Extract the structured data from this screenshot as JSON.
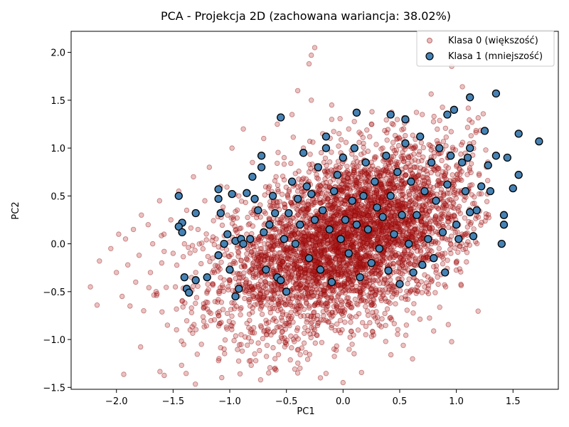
{
  "chart_data": {
    "type": "scatter",
    "title": "PCA - Projekcja 2D (zachowana wariancja: 38.02%)",
    "xlabel": "PC1",
    "ylabel": "PC2",
    "xlim": [
      -2.4,
      1.9
    ],
    "ylim": [
      -1.52,
      2.22
    ],
    "xticks": [
      -2.0,
      -1.5,
      -1.0,
      -0.5,
      0.0,
      0.5,
      1.0,
      1.5
    ],
    "xtick_labels": [
      "−2.0",
      "−1.5",
      "−1.0",
      "−0.5",
      "0.0",
      "0.5",
      "1.0",
      "1.5"
    ],
    "yticks": [
      -1.5,
      -1.0,
      -0.5,
      0.0,
      0.5,
      1.0,
      1.5,
      2.0
    ],
    "ytick_labels": [
      "−1.5",
      "−1.0",
      "−0.5",
      "0.0",
      "0.5",
      "1.0",
      "1.5",
      "2.0"
    ],
    "grid": false,
    "legend_position": "top-right",
    "series": [
      {
        "name": "Klasa 0 (większość)",
        "color": "#b22222",
        "edge": "#8b0000",
        "approx_count": 4500,
        "points": [
          [
            -2.23,
            -0.45
          ],
          [
            -2.15,
            -0.18
          ],
          [
            -2.05,
            -0.05
          ],
          [
            -2.0,
            -0.3
          ],
          [
            -1.98,
            0.1
          ],
          [
            -1.95,
            -0.55
          ],
          [
            -1.92,
            0.05
          ],
          [
            -1.9,
            -0.22
          ],
          [
            -1.88,
            -0.65
          ],
          [
            -1.85,
            0.15
          ],
          [
            -1.83,
            -0.4
          ],
          [
            -1.8,
            -0.12
          ],
          [
            -1.78,
            0.3
          ],
          [
            -1.76,
            -0.7
          ],
          [
            -1.72,
            0.2
          ],
          [
            -1.7,
            -0.3
          ],
          [
            -1.68,
            0.0
          ],
          [
            -1.65,
            -0.5
          ],
          [
            -1.62,
            0.45
          ],
          [
            -1.6,
            -0.2
          ],
          [
            -1.58,
            0.1
          ],
          [
            -1.55,
            -0.85
          ],
          [
            -1.52,
            0.25
          ],
          [
            -1.5,
            -0.1
          ],
          [
            -1.48,
            -0.45
          ],
          [
            -1.45,
            0.55
          ],
          [
            -1.42,
            -0.6
          ],
          [
            -1.4,
            0.0
          ],
          [
            -1.38,
            0.35
          ],
          [
            -1.35,
            -0.9
          ],
          [
            -1.32,
            0.7
          ],
          [
            -1.3,
            -0.3
          ],
          [
            -1.28,
            0.15
          ],
          [
            -1.25,
            -1.05
          ],
          [
            -1.22,
            0.45
          ],
          [
            -1.2,
            -0.5
          ],
          [
            -1.18,
            0.8
          ],
          [
            -1.15,
            -0.15
          ],
          [
            -1.12,
            0.05
          ],
          [
            -1.1,
            -0.75
          ],
          [
            -1.08,
            0.6
          ],
          [
            -1.05,
            -1.1
          ],
          [
            -1.02,
            0.3
          ],
          [
            -1.0,
            -0.4
          ],
          [
            -0.98,
            1.0
          ],
          [
            -0.95,
            -0.2
          ],
          [
            -0.92,
            0.5
          ],
          [
            -0.9,
            -0.95
          ],
          [
            -0.88,
            1.2
          ],
          [
            -0.85,
            0.1
          ],
          [
            -0.82,
            -0.65
          ],
          [
            -0.8,
            0.85
          ],
          [
            -0.78,
            -1.15
          ],
          [
            -0.75,
            0.35
          ],
          [
            -0.72,
            -0.3
          ],
          [
            -0.7,
            1.1
          ],
          [
            -0.68,
            -0.8
          ],
          [
            -0.65,
            0.6
          ],
          [
            -0.62,
            0.0
          ],
          [
            -0.6,
            -1.2
          ],
          [
            -0.58,
            1.25
          ],
          [
            -0.55,
            -0.45
          ],
          [
            -0.52,
            0.9
          ],
          [
            -0.5,
            -1.05
          ],
          [
            -0.48,
            0.2
          ],
          [
            -0.45,
            1.35
          ],
          [
            -0.42,
            -0.7
          ],
          [
            -0.4,
            0.55
          ],
          [
            -0.38,
            -1.3
          ],
          [
            -0.35,
            1.0
          ],
          [
            -0.32,
            -0.25
          ],
          [
            -0.3,
            0.75
          ],
          [
            -0.28,
            1.5
          ],
          [
            -0.25,
            -0.9
          ],
          [
            -0.22,
            0.3
          ],
          [
            -0.2,
            -1.4
          ],
          [
            -0.18,
            1.15
          ],
          [
            -0.15,
            -0.55
          ],
          [
            -0.12,
            0.6
          ],
          [
            -0.1,
            1.3
          ],
          [
            -0.08,
            -1.1
          ],
          [
            -0.05,
            0.1
          ],
          [
            -0.02,
            0.95
          ],
          [
            0.0,
            -0.75
          ],
          [
            0.02,
            0.45
          ],
          [
            0.05,
            1.2
          ],
          [
            0.08,
            -1.05
          ],
          [
            0.1,
            0.25
          ],
          [
            0.12,
            0.8
          ],
          [
            0.15,
            -0.5
          ],
          [
            0.18,
            1.05
          ],
          [
            0.2,
            -0.95
          ],
          [
            0.22,
            0.4
          ],
          [
            0.25,
            1.25
          ],
          [
            0.28,
            -0.3
          ],
          [
            0.3,
            0.65
          ],
          [
            0.32,
            -0.85
          ],
          [
            0.35,
            1.0
          ],
          [
            0.38,
            -0.6
          ],
          [
            0.4,
            0.3
          ],
          [
            0.42,
            0.85
          ],
          [
            0.45,
            -0.45
          ],
          [
            0.48,
            1.1
          ],
          [
            0.5,
            -0.2
          ],
          [
            0.52,
            0.55
          ],
          [
            0.55,
            -0.55
          ],
          [
            0.58,
            0.9
          ],
          [
            0.6,
            0.1
          ],
          [
            0.62,
            -0.35
          ],
          [
            0.65,
            0.7
          ],
          [
            0.68,
            -0.15
          ],
          [
            0.7,
            0.4
          ],
          [
            0.72,
            -0.45
          ],
          [
            0.75,
            0.85
          ],
          [
            0.78,
            0.0
          ],
          [
            0.8,
            0.5
          ],
          [
            0.82,
            -0.3
          ],
          [
            0.85,
            0.65
          ],
          [
            0.88,
            0.2
          ],
          [
            0.9,
            -0.1
          ],
          [
            0.92,
            0.45
          ],
          [
            0.95,
            0.0
          ],
          [
            0.98,
            0.3
          ],
          [
            1.0,
            -0.2
          ],
          [
            1.02,
            0.55
          ],
          [
            1.05,
            0.1
          ],
          [
            1.08,
            -0.05
          ],
          [
            1.12,
            0.35
          ],
          [
            -0.25,
            2.05
          ],
          [
            -0.28,
            1.97
          ],
          [
            -0.3,
            1.88
          ],
          [
            -0.4,
            1.6
          ],
          [
            -0.1,
            1.45
          ],
          [
            0.0,
            -1.45
          ],
          [
            -0.4,
            -1.35
          ],
          [
            -0.6,
            -1.3
          ]
        ]
      },
      {
        "name": "Klasa 1 (mniejszość)",
        "color": "#4682b4",
        "edge": "#000000",
        "points": [
          [
            -1.45,
            0.5
          ],
          [
            -1.42,
            0.22
          ],
          [
            -1.45,
            0.18
          ],
          [
            -1.42,
            0.12
          ],
          [
            -1.38,
            -0.47
          ],
          [
            -1.36,
            -0.51
          ],
          [
            -1.4,
            -0.35
          ],
          [
            -1.3,
            -0.38
          ],
          [
            -1.3,
            0.32
          ],
          [
            -1.2,
            -0.35
          ],
          [
            -1.1,
            -0.12
          ],
          [
            -1.05,
            0.0
          ],
          [
            -1.02,
            0.1
          ],
          [
            -1.0,
            -0.27
          ],
          [
            -0.95,
            -0.55
          ],
          [
            -0.98,
            0.52
          ],
          [
            -1.1,
            0.57
          ],
          [
            -1.1,
            0.47
          ],
          [
            -1.08,
            0.32
          ],
          [
            -0.95,
            0.03
          ],
          [
            -0.92,
            -0.47
          ],
          [
            -0.9,
            0.05
          ],
          [
            -0.88,
            0.0
          ],
          [
            -0.85,
            0.53
          ],
          [
            -0.82,
            0.05
          ],
          [
            -0.8,
            0.7
          ],
          [
            -0.78,
            0.47
          ],
          [
            -0.75,
            0.35
          ],
          [
            -0.72,
            0.8
          ],
          [
            -0.72,
            0.92
          ],
          [
            -0.7,
            0.12
          ],
          [
            -0.68,
            -0.27
          ],
          [
            -0.65,
            0.2
          ],
          [
            -0.62,
            0.5
          ],
          [
            -0.6,
            0.32
          ],
          [
            -0.58,
            -0.35
          ],
          [
            -0.55,
            -0.38
          ],
          [
            -0.52,
            0.05
          ],
          [
            -0.5,
            -0.5
          ],
          [
            -0.48,
            0.32
          ],
          [
            -0.45,
            0.65
          ],
          [
            -0.42,
            0.0
          ],
          [
            -0.4,
            0.47
          ],
          [
            -0.38,
            0.2
          ],
          [
            -0.35,
            0.95
          ],
          [
            -0.32,
            0.6
          ],
          [
            -0.3,
            -0.15
          ],
          [
            -0.28,
            0.52
          ],
          [
            -0.25,
            0.25
          ],
          [
            -0.22,
            0.8
          ],
          [
            -0.2,
            -0.27
          ],
          [
            -0.18,
            0.35
          ],
          [
            -0.15,
            1.0
          ],
          [
            -0.12,
            0.15
          ],
          [
            -0.1,
            -0.4
          ],
          [
            -0.08,
            0.55
          ],
          [
            -0.05,
            0.72
          ],
          [
            -0.02,
            0.05
          ],
          [
            0.0,
            0.9
          ],
          [
            0.02,
            0.25
          ],
          [
            0.05,
            -0.1
          ],
          [
            0.08,
            0.45
          ],
          [
            0.1,
            1.0
          ],
          [
            0.12,
            0.2
          ],
          [
            0.15,
            -0.35
          ],
          [
            0.18,
            0.5
          ],
          [
            0.2,
            0.85
          ],
          [
            0.22,
            0.15
          ],
          [
            0.25,
            -0.2
          ],
          [
            0.28,
            0.65
          ],
          [
            0.3,
            0.38
          ],
          [
            0.32,
            -0.05
          ],
          [
            0.35,
            0.28
          ],
          [
            0.38,
            0.92
          ],
          [
            0.4,
            -0.28
          ],
          [
            0.42,
            0.5
          ],
          [
            0.45,
            0.1
          ],
          [
            0.48,
            0.75
          ],
          [
            0.5,
            -0.42
          ],
          [
            0.52,
            0.3
          ],
          [
            0.55,
            1.05
          ],
          [
            0.58,
            0.0
          ],
          [
            0.6,
            0.65
          ],
          [
            0.62,
            -0.3
          ],
          [
            0.65,
            0.3
          ],
          [
            0.68,
            1.12
          ],
          [
            0.7,
            -0.22
          ],
          [
            0.72,
            0.55
          ],
          [
            0.75,
            0.05
          ],
          [
            0.78,
            0.85
          ],
          [
            0.8,
            -0.15
          ],
          [
            0.82,
            0.45
          ],
          [
            0.85,
            1.0
          ],
          [
            0.88,
            0.12
          ],
          [
            0.9,
            -0.3
          ],
          [
            0.92,
            0.62
          ],
          [
            0.95,
            0.92
          ],
          [
            0.98,
            1.4
          ],
          [
            1.0,
            0.2
          ],
          [
            1.02,
            0.05
          ],
          [
            1.05,
            0.85
          ],
          [
            1.08,
            0.55
          ],
          [
            1.1,
            0.9
          ],
          [
            1.12,
            1.0
          ],
          [
            1.12,
            0.33
          ],
          [
            1.15,
            0.08
          ],
          [
            1.18,
            0.35
          ],
          [
            1.22,
            0.6
          ],
          [
            1.25,
            1.18
          ],
          [
            1.28,
            0.82
          ],
          [
            1.3,
            0.55
          ],
          [
            1.35,
            0.92
          ],
          [
            1.35,
            1.57
          ],
          [
            1.42,
            0.3
          ],
          [
            1.42,
            0.2
          ],
          [
            1.4,
            0.0
          ],
          [
            1.45,
            0.9
          ],
          [
            1.5,
            0.58
          ],
          [
            1.55,
            0.72
          ],
          [
            1.55,
            1.15
          ],
          [
            1.73,
            1.07
          ],
          [
            1.12,
            1.53
          ],
          [
            0.12,
            1.37
          ],
          [
            0.42,
            1.35
          ],
          [
            -0.55,
            1.32
          ],
          [
            -0.15,
            1.12
          ],
          [
            0.55,
            1.3
          ],
          [
            0.92,
            1.35
          ]
        ]
      }
    ]
  }
}
